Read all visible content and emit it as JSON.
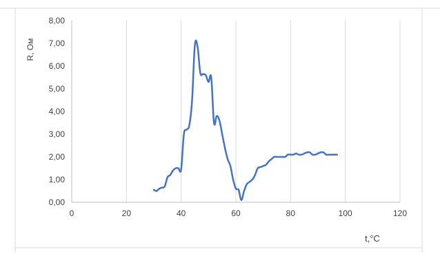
{
  "chart_data": {
    "type": "line",
    "xlabel": "t,°C",
    "ylabel": "R, Ом",
    "xlim": [
      0,
      120
    ],
    "ylim": [
      0,
      8
    ],
    "x_ticks": [
      "0",
      "20",
      "40",
      "60",
      "80",
      "100",
      "120"
    ],
    "y_ticks": [
      "0,00",
      "1,00",
      "2,00",
      "3,00",
      "4,00",
      "5,00",
      "6,00",
      "7,00",
      "8,00"
    ],
    "grid": "vertical",
    "legend": "none",
    "line_color": "#4472c4",
    "series": [
      {
        "x": [
          30,
          31,
          32,
          33,
          34,
          35,
          36,
          37,
          38,
          39,
          40,
          41,
          42,
          43,
          44,
          45,
          46,
          47,
          48,
          49,
          50,
          51,
          52,
          53,
          54,
          55,
          56,
          57,
          58,
          59,
          60,
          61,
          62,
          63,
          64,
          65,
          66,
          67,
          68,
          69,
          70,
          71,
          72,
          73,
          74,
          75,
          76,
          77,
          78,
          79,
          80,
          81,
          82,
          83,
          84,
          85,
          86,
          87,
          88,
          89,
          90,
          91,
          92,
          93,
          94,
          95,
          96,
          97
        ],
        "y": [
          0.55,
          0.5,
          0.6,
          0.65,
          0.7,
          1.1,
          1.2,
          1.4,
          1.5,
          1.5,
          1.45,
          3.0,
          3.2,
          3.4,
          4.5,
          6.9,
          6.85,
          5.7,
          5.65,
          5.6,
          5.3,
          5.5,
          3.5,
          3.8,
          3.6,
          3.0,
          2.4,
          1.9,
          1.6,
          1.0,
          0.6,
          0.55,
          0.1,
          0.5,
          0.8,
          0.9,
          1.0,
          1.2,
          1.5,
          1.55,
          1.6,
          1.65,
          1.8,
          1.9,
          2.0,
          2.0,
          2.0,
          2.0,
          2.0,
          2.1,
          2.1,
          2.1,
          2.15,
          2.1,
          2.1,
          2.15,
          2.2,
          2.2,
          2.1,
          2.1,
          2.15,
          2.2,
          2.2,
          2.1,
          2.1,
          2.1,
          2.1,
          2.1
        ]
      }
    ]
  }
}
